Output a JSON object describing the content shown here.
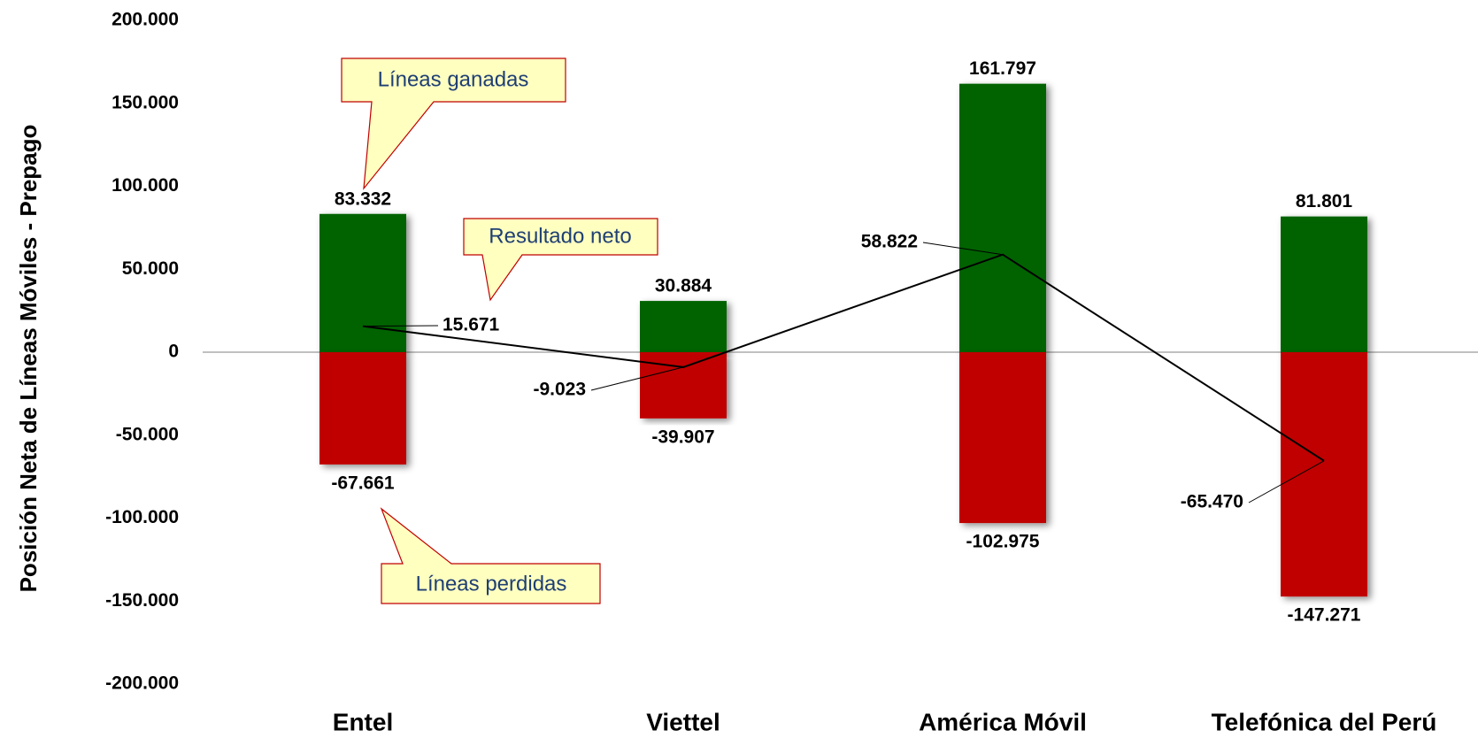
{
  "chart_data": {
    "type": "bar",
    "y_label": "Posición Neta de Líneas Móviles - Prepago",
    "categories": [
      "Entel",
      "Viettel",
      "América Móvil",
      "Telefónica del Perú"
    ],
    "series": [
      {
        "name": "Líneas ganadas",
        "color": "#006400",
        "values": [
          83332,
          30884,
          161797,
          81801
        ],
        "value_labels": [
          "83.332",
          "30.884",
          "161.797",
          "81.801"
        ]
      },
      {
        "name": "Líneas perdidas",
        "color": "#c00000",
        "values": [
          -67661,
          -39907,
          -102975,
          -147271
        ],
        "value_labels": [
          "-67.661",
          "-39.907",
          "-102.975",
          "-147.271"
        ]
      },
      {
        "name": "Resultado neto",
        "type": "line",
        "color": "#000000",
        "values": [
          15671,
          -9023,
          58822,
          -65470
        ],
        "value_labels": [
          "15.671",
          "-9.023",
          "58.822",
          "-65.470"
        ],
        "positive_label_color": "#0000ff",
        "negative_label_color": "#c00000"
      }
    ],
    "ylim": [
      -200000,
      200000
    ],
    "yticks": [
      {
        "value": -200000,
        "label": "-200.000"
      },
      {
        "value": -150000,
        "label": "-150.000"
      },
      {
        "value": -100000,
        "label": "-100.000"
      },
      {
        "value": -50000,
        "label": "-50.000"
      },
      0,
      {
        "value": 50000,
        "label": "50.000"
      },
      {
        "value": 100000,
        "label": "100.000"
      },
      {
        "value": 150000,
        "label": "150.000"
      },
      {
        "value": 200000,
        "label": "200.000"
      }
    ],
    "zero_line_color": "#c0c0c0"
  }
}
